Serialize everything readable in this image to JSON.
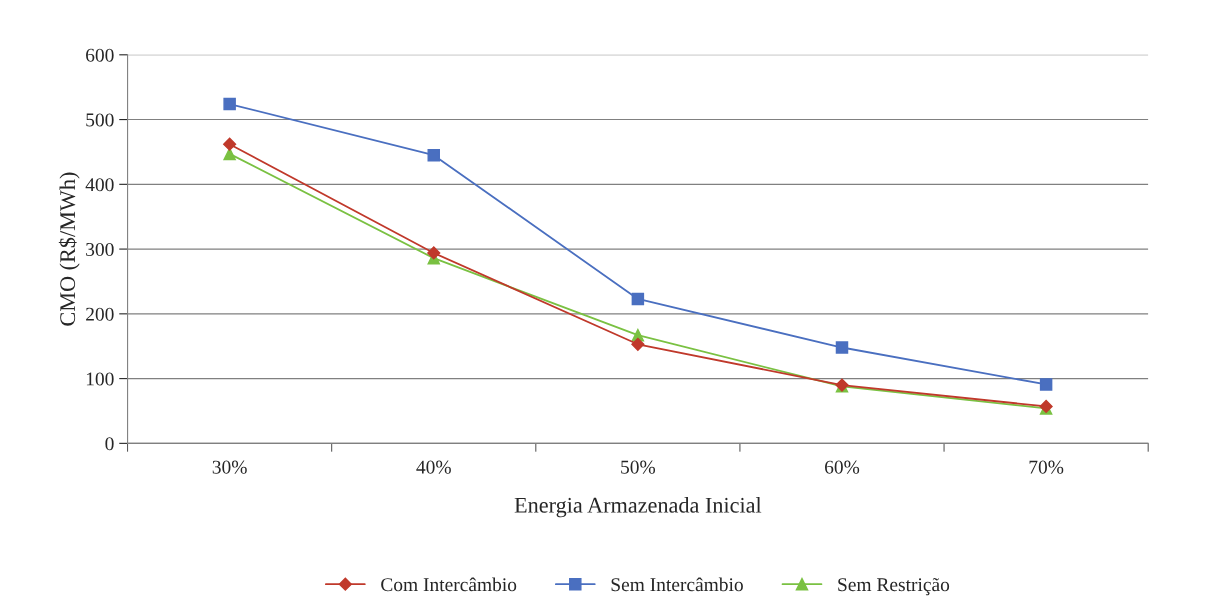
{
  "chart_data": {
    "type": "line",
    "xlabel": "Energia Armazenada Inicial",
    "ylabel": "CMO (R$/MWh)",
    "categories": [
      "30%",
      "40%",
      "50%",
      "60%",
      "70%"
    ],
    "series": [
      {
        "name": "Com Intercâmbio",
        "color": "#c0392b",
        "marker": "diamond",
        "values": [
          462,
          294,
          153,
          90,
          57
        ]
      },
      {
        "name": "Sem Intercâmbio",
        "color": "#4a6fc0",
        "marker": "square",
        "values": [
          524,
          445,
          223,
          148,
          91
        ]
      },
      {
        "name": "Sem Restrição",
        "color": "#7ac142",
        "marker": "triangle",
        "values": [
          447,
          286,
          167,
          88,
          54
        ]
      }
    ],
    "ylim": [
      0,
      600
    ],
    "yticks": [
      0,
      100,
      200,
      300,
      400,
      500,
      600
    ],
    "grid": "y",
    "legend": "bottom",
    "line_style": "solid"
  }
}
